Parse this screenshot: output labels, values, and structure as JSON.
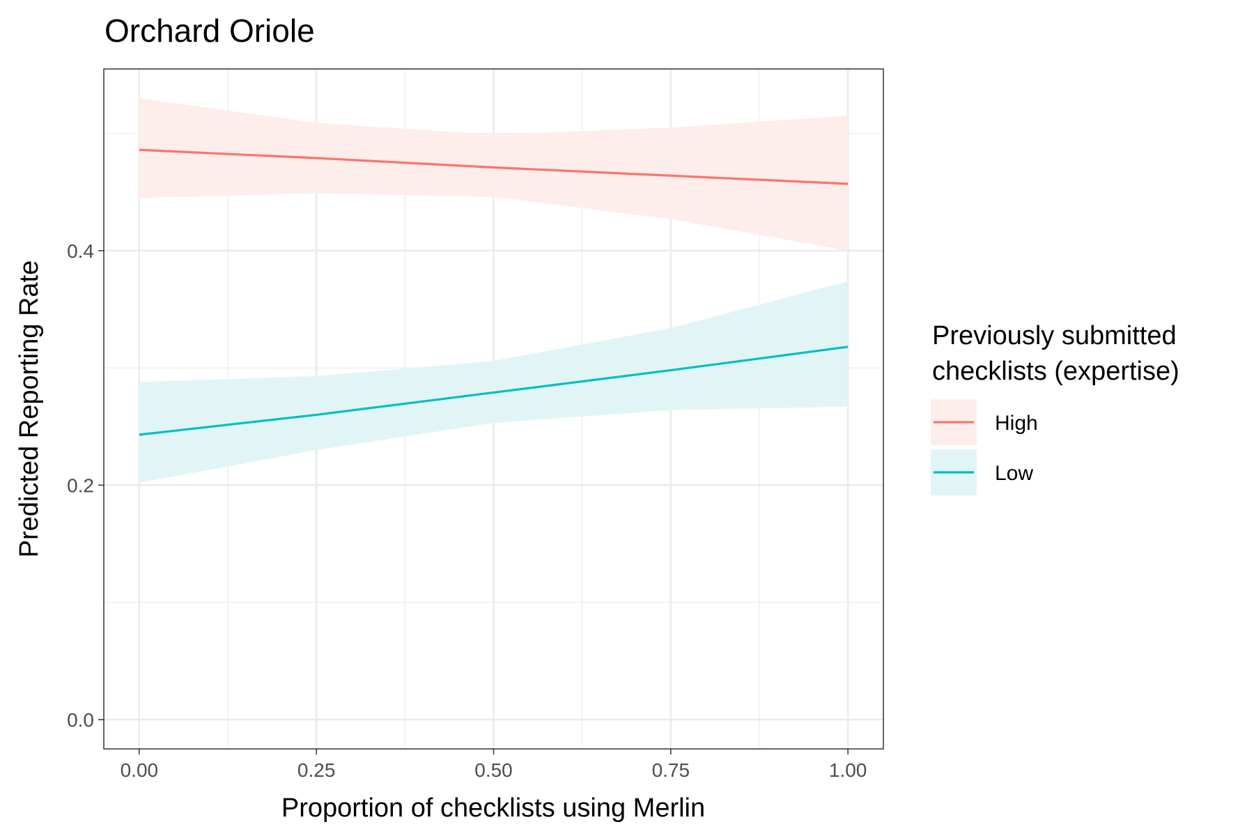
{
  "chart_data": {
    "type": "line",
    "title": "Orchard Oriole",
    "xlabel": "Proportion of checklists using Merlin",
    "ylabel": "Predicted Reporting Rate",
    "xlim": [
      -0.05,
      1.05
    ],
    "ylim": [
      -0.025,
      0.555
    ],
    "x_ticks": [
      0.0,
      0.25,
      0.5,
      0.75,
      1.0
    ],
    "x_tick_labels": [
      "0.00",
      "0.25",
      "0.50",
      "0.75",
      "1.00"
    ],
    "y_ticks": [
      0.0,
      0.2,
      0.4
    ],
    "y_tick_labels": [
      "0.0",
      "0.2",
      "0.4"
    ],
    "y_minor_ticks": [
      0.1,
      0.3,
      0.5
    ],
    "x_minor_ticks": [
      0.125,
      0.375,
      0.625,
      0.875
    ],
    "grid": true,
    "legend": {
      "title_lines": [
        "Previously submitted",
        "checklists (expertise)"
      ],
      "position": "right"
    },
    "series": [
      {
        "name": "High",
        "color": "#F8766D",
        "band_color": "#FDEDEB",
        "x": [
          0.0,
          0.25,
          0.5,
          0.75,
          1.0
        ],
        "y": [
          0.486,
          0.479,
          0.471,
          0.464,
          0.457
        ],
        "lower": [
          0.445,
          0.449,
          0.446,
          0.427,
          0.4
        ],
        "upper": [
          0.53,
          0.509,
          0.499,
          0.505,
          0.515
        ]
      },
      {
        "name": "Low",
        "color": "#00BFC4",
        "band_color": "#E2F5F6",
        "x": [
          0.0,
          0.25,
          0.5,
          0.75,
          1.0
        ],
        "y": [
          0.243,
          0.26,
          0.279,
          0.298,
          0.318
        ],
        "lower": [
          0.202,
          0.23,
          0.253,
          0.264,
          0.267
        ],
        "upper": [
          0.288,
          0.293,
          0.306,
          0.334,
          0.374
        ]
      }
    ]
  }
}
